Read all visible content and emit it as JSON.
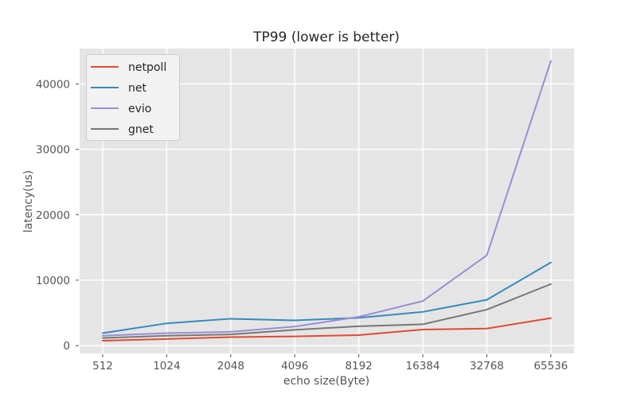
{
  "chart_data": {
    "type": "line",
    "title": "TP99 (lower is better)",
    "xlabel": "echo size(Byte)",
    "ylabel": "latency(us)",
    "categories": [
      "512",
      "1024",
      "2048",
      "4096",
      "8192",
      "16384",
      "32768",
      "65536"
    ],
    "yticks": [
      0,
      10000,
      20000,
      30000,
      40000
    ],
    "ylim": [
      -1200,
      45400
    ],
    "grid": true,
    "legend_position": "upper-left",
    "style": {
      "plot_bg": "#E5E5E5",
      "grid_color": "#FFFFFF",
      "tick_text_color": "#555555",
      "axis_label_color": "#555555",
      "title_color": "#262626",
      "legend_bg": "#F2F2F2",
      "legend_border": "#CCCCCC",
      "tick_mark_color": "#555555"
    },
    "series": [
      {
        "name": "netpoll",
        "color": "#E24A33",
        "values": [
          750,
          1000,
          1300,
          1400,
          1600,
          2450,
          2600,
          4200
        ]
      },
      {
        "name": "net",
        "color": "#348ABD",
        "values": [
          1900,
          3400,
          4100,
          3850,
          4250,
          5150,
          7000,
          12700
        ]
      },
      {
        "name": "evio",
        "color": "#988ED5",
        "values": [
          1500,
          1900,
          2100,
          2900,
          4400,
          6800,
          13800,
          43500
        ]
      },
      {
        "name": "gnet",
        "color": "#777777",
        "values": [
          1150,
          1500,
          1700,
          2400,
          2950,
          3250,
          5500,
          9400
        ]
      }
    ]
  }
}
